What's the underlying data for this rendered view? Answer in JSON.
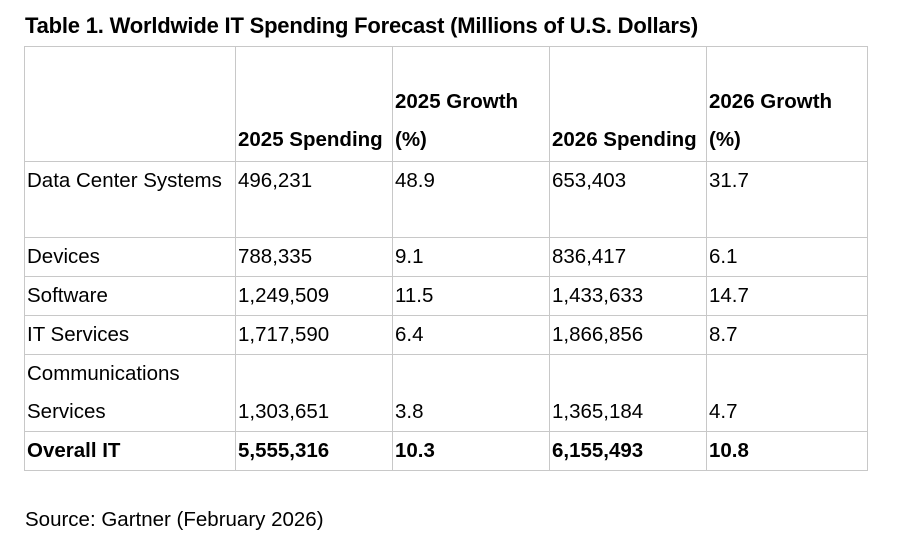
{
  "title": "Table 1. Worldwide IT Spending Forecast (Millions of U.S. Dollars)",
  "table": {
    "columns": [
      "",
      "2025 Spending",
      "2025 Growth (%)",
      "2026 Spending",
      "2026 Growth (%)"
    ],
    "rows": [
      {
        "segment": "Data Center Systems",
        "spending_2025": "496,231",
        "growth_2025": "48.9",
        "spending_2026": "653,403",
        "growth_2026": "31.7"
      },
      {
        "segment": "Devices",
        "spending_2025": "788,335",
        "growth_2025": "9.1",
        "spending_2026": "836,417",
        "growth_2026": "6.1"
      },
      {
        "segment": "Software",
        "spending_2025": "1,249,509",
        "growth_2025": "11.5",
        "spending_2026": "1,433,633",
        "growth_2026": "14.7"
      },
      {
        "segment": "IT Services",
        "spending_2025": "1,717,590",
        "growth_2025": "6.4",
        "spending_2026": "1,866,856",
        "growth_2026": "8.7"
      },
      {
        "segment": "Communications Services",
        "spending_2025": "1,303,651",
        "growth_2025": "3.8",
        "spending_2026": "1,365,184",
        "growth_2026": "4.7"
      }
    ],
    "total": {
      "segment": "Overall IT",
      "spending_2025": "5,555,316",
      "growth_2025": "10.3",
      "spending_2026": "6,155,493",
      "growth_2026": "10.8"
    }
  },
  "source": "Source: Gartner (February 2026)"
}
